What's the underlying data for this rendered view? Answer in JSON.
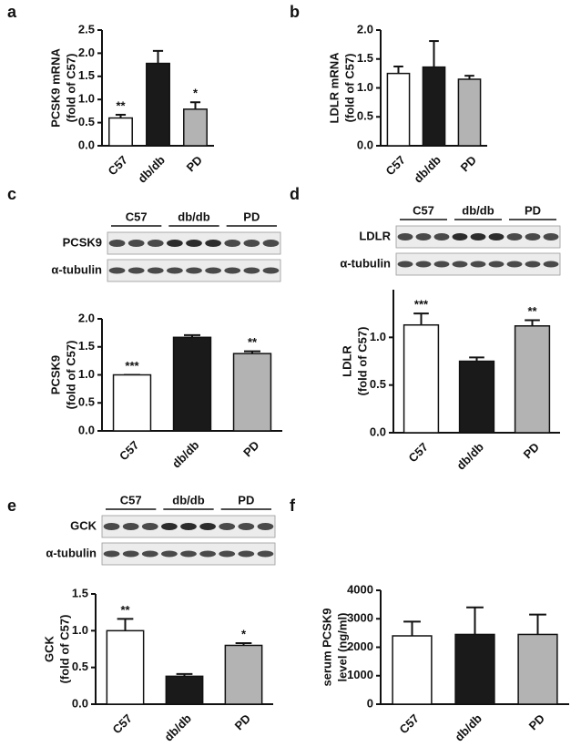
{
  "chart_data": [
    {
      "type": "bar",
      "panel": "a",
      "ylabel": [
        "PCSK9 mRNA",
        "(fold of C57)"
      ],
      "categories": [
        "C57",
        "db/db",
        "PD"
      ],
      "values": [
        0.6,
        1.78,
        0.79
      ],
      "errors": [
        0.07,
        0.27,
        0.15
      ],
      "annotations": [
        "**",
        null,
        "*"
      ],
      "colors": [
        "#ffffff",
        "#1a1a1a",
        "#b3b3b3"
      ],
      "ylim": [
        0,
        2.5
      ],
      "yticks": [
        {
          "value": 0,
          "label": "0.0"
        },
        0.5,
        {
          "value": 1,
          "label": "1.0"
        },
        1.5,
        {
          "value": 2,
          "label": "2.0"
        },
        2.5
      ]
    },
    {
      "type": "bar",
      "panel": "b",
      "ylabel": [
        "LDLR mRNA",
        "(fold of C57)"
      ],
      "categories": [
        "C57",
        "db/db",
        "PD"
      ],
      "values": [
        1.25,
        1.36,
        1.15
      ],
      "errors": [
        0.12,
        0.45,
        0.06
      ],
      "annotations": [
        null,
        null,
        null
      ],
      "colors": [
        "#ffffff",
        "#1a1a1a",
        "#b3b3b3"
      ],
      "ylim": [
        0,
        2.0
      ],
      "yticks": [
        {
          "value": 0,
          "label": "0.0"
        },
        0.5,
        {
          "value": 1,
          "label": "1.0"
        },
        1.5,
        {
          "value": 2,
          "label": "2.0"
        }
      ]
    },
    {
      "type": "bar",
      "panel": "c",
      "ylabel": [
        "PCSK9",
        "(fold of C57)"
      ],
      "blot": {
        "groups": [
          "C57",
          "db/db",
          "PD"
        ],
        "rows": [
          "PCSK9",
          "α-tubulin"
        ]
      },
      "categories": [
        "C57",
        "db/db",
        "PD"
      ],
      "values": [
        1.0,
        1.67,
        1.38
      ],
      "errors": [
        0,
        0.04,
        0.04
      ],
      "annotations": [
        "***",
        null,
        "**"
      ],
      "colors": [
        "#ffffff",
        "#1a1a1a",
        "#b3b3b3"
      ],
      "ylim": [
        0,
        2.0
      ],
      "yticks": [
        {
          "value": 0,
          "label": "0.0"
        },
        0.5,
        {
          "value": 1,
          "label": "1.0"
        },
        1.5,
        {
          "value": 2,
          "label": "2.0"
        }
      ]
    },
    {
      "type": "bar",
      "panel": "d",
      "ylabel": [
        "LDLR",
        "(fold of C57)"
      ],
      "blot": {
        "groups": [
          "C57",
          "db/db",
          "PD"
        ],
        "rows": [
          "LDLR",
          "α-tubulin"
        ]
      },
      "categories": [
        "C57",
        "db/db",
        "PD"
      ],
      "values": [
        1.13,
        0.75,
        1.12
      ],
      "errors": [
        0.12,
        0.04,
        0.06
      ],
      "annotations": [
        "***",
        null,
        "**"
      ],
      "colors": [
        "#ffffff",
        "#1a1a1a",
        "#b3b3b3"
      ],
      "ylim": [
        0,
        1.5
      ],
      "yticks": [
        {
          "value": 0,
          "label": "0.0"
        },
        0.5,
        {
          "value": 1,
          "label": "1.0"
        }
      ]
    },
    {
      "type": "bar",
      "panel": "e",
      "ylabel": [
        "GCK",
        "(fold of C57)"
      ],
      "blot": {
        "groups": [
          "C57",
          "db/db",
          "PD"
        ],
        "rows": [
          "GCK",
          "α-tubulin"
        ]
      },
      "categories": [
        "C57",
        "db/db",
        "PD"
      ],
      "values": [
        1.0,
        0.38,
        0.8
      ],
      "errors": [
        0.16,
        0.03,
        0.03
      ],
      "annotations": [
        "**",
        null,
        "*"
      ],
      "colors": [
        "#ffffff",
        "#1a1a1a",
        "#b3b3b3"
      ],
      "ylim": [
        0,
        1.5
      ],
      "yticks": [
        {
          "value": 0,
          "label": "0.0"
        },
        0.5,
        {
          "value": 1,
          "label": "1.0"
        },
        1.5
      ]
    },
    {
      "type": "bar",
      "panel": "f",
      "ylabel": [
        "serum PCSK9",
        "level (ng/ml)"
      ],
      "categories": [
        "C57",
        "db/db",
        "PD"
      ],
      "values": [
        2400,
        2450,
        2450
      ],
      "errors": [
        500,
        950,
        700
      ],
      "annotations": [
        null,
        null,
        null
      ],
      "colors": [
        "#ffffff",
        "#1a1a1a",
        "#b3b3b3"
      ],
      "ylim": [
        0,
        4000
      ],
      "yticks": [
        0,
        1000,
        2000,
        3000,
        4000
      ]
    }
  ]
}
